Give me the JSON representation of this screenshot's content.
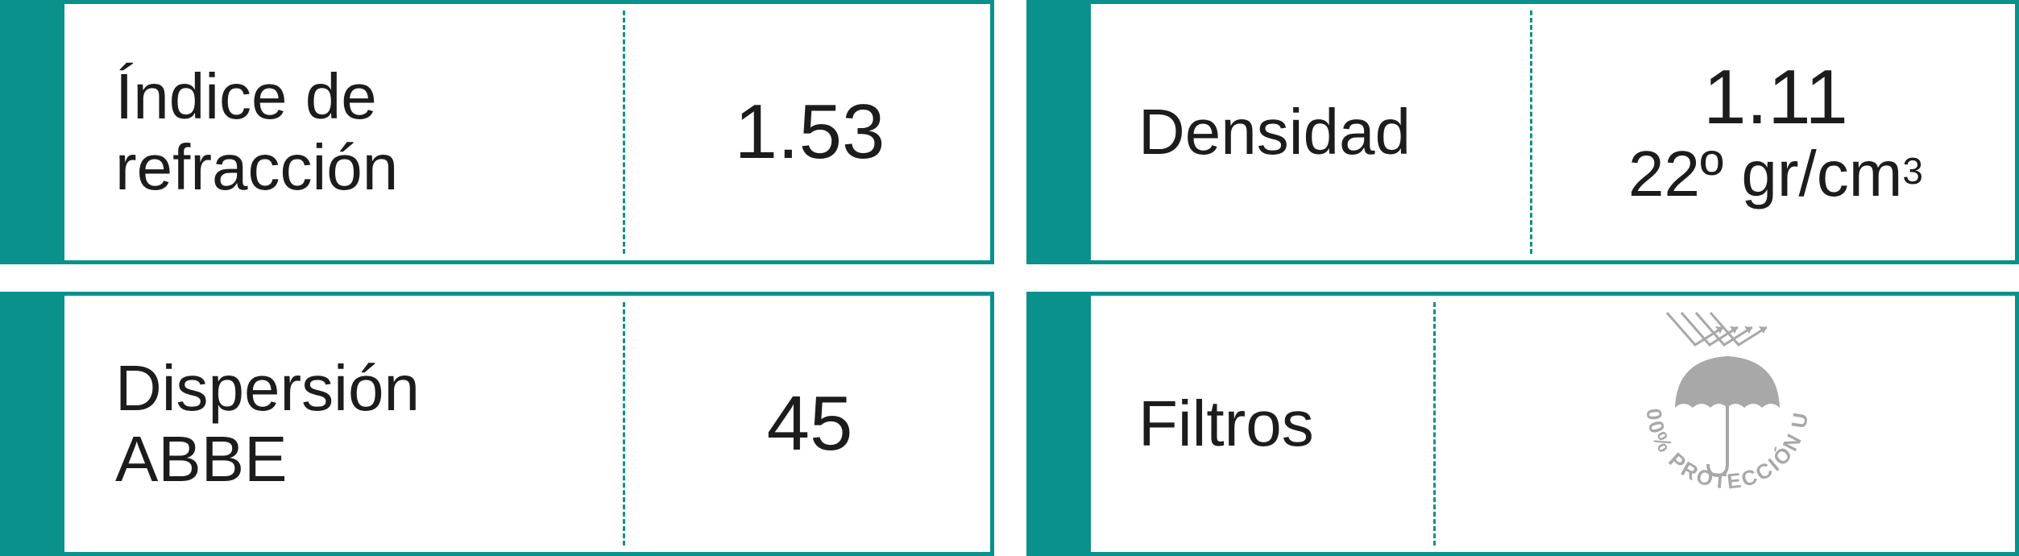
{
  "accent_color": "#0b918c",
  "refraction": {
    "label_lines": [
      "Índice de",
      "refracción"
    ],
    "value": "1.53"
  },
  "density": {
    "label": "Densidad",
    "value": "1.11",
    "sub_value": "22º gr/cm",
    "sub_unit_superscript": "3"
  },
  "dispersion": {
    "label_lines": [
      "Dispersión",
      "ABBE"
    ],
    "value": "45"
  },
  "filters": {
    "label": "Filtros",
    "badge_text": "100% PROTECCIÓN UV",
    "badge_icon": "umbrella-uv-icon"
  }
}
